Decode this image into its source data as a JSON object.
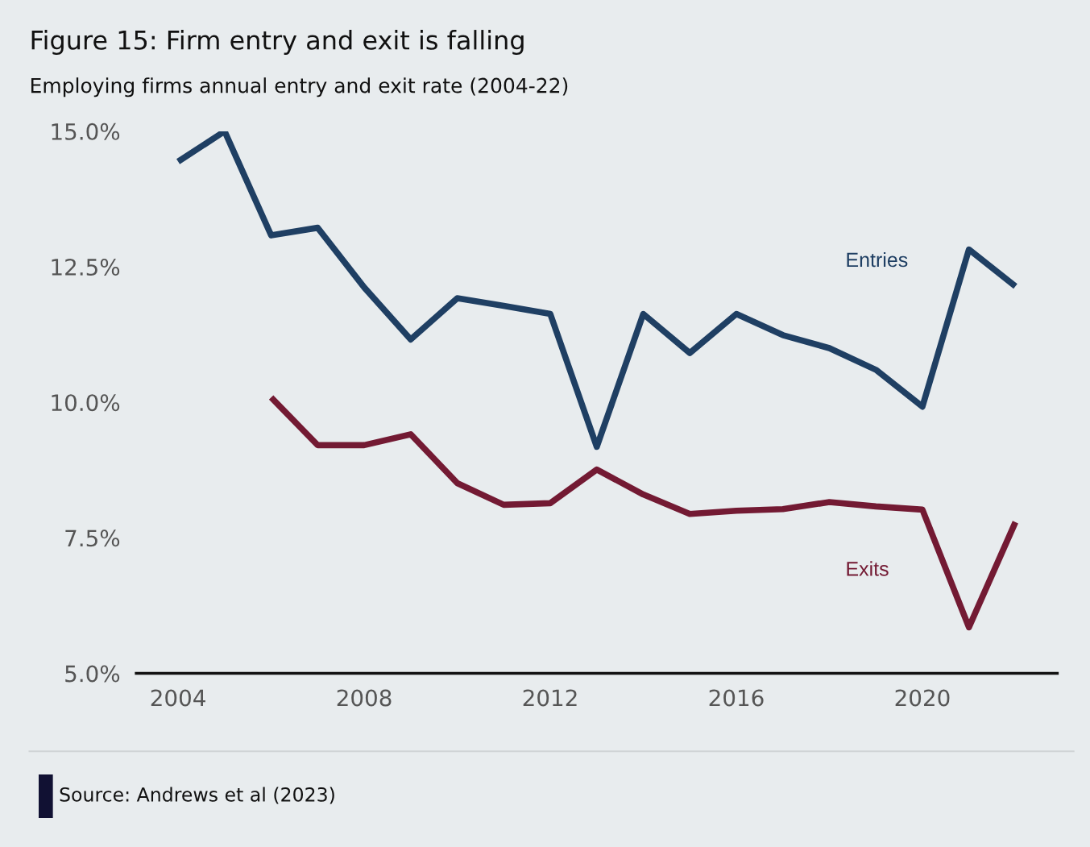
{
  "chart_data": {
    "type": "line",
    "title": "Figure 15: Firm entry and exit is falling",
    "subtitle": "Employing firms annual entry and exit rate (2004-22)",
    "x": [
      2004,
      2005,
      2006,
      2007,
      2008,
      2009,
      2010,
      2011,
      2012,
      2013,
      2014,
      2015,
      2016,
      2017,
      2018,
      2019,
      2020,
      2021,
      2022
    ],
    "series": [
      {
        "name": "Entries",
        "color": "#1f3f63",
        "values": [
          14.44,
          15.0,
          13.08,
          13.22,
          12.12,
          11.16,
          11.92,
          11.78,
          11.63,
          9.18,
          11.63,
          10.91,
          11.63,
          11.24,
          11.0,
          10.6,
          9.92,
          12.82,
          12.14
        ]
      },
      {
        "name": "Exits",
        "color": "#731a33",
        "values": [
          null,
          null,
          10.09,
          9.21,
          9.21,
          9.41,
          8.51,
          8.11,
          8.14,
          8.76,
          8.3,
          7.94,
          8.0,
          8.03,
          8.16,
          8.08,
          8.02,
          5.85,
          7.79
        ]
      }
    ],
    "xlim": [
      2003.1,
      2022.9
    ],
    "xticks": [
      2004,
      2008,
      2012,
      2016,
      2020
    ],
    "ylim": [
      5,
      15
    ],
    "yticks": [
      {
        "value": 5,
        "label": "5.0%"
      },
      {
        "value": 7.5,
        "label": "7.5%"
      },
      {
        "value": 10,
        "label": "10.0%"
      },
      {
        "value": 12.5,
        "label": "12.5%"
      },
      {
        "value": 15,
        "label": "15.0%"
      }
    ],
    "grid": false,
    "legend": false,
    "marker": "none",
    "line_style": "solid",
    "annotations": [
      "Source: Andrews et al (2023)"
    ]
  }
}
